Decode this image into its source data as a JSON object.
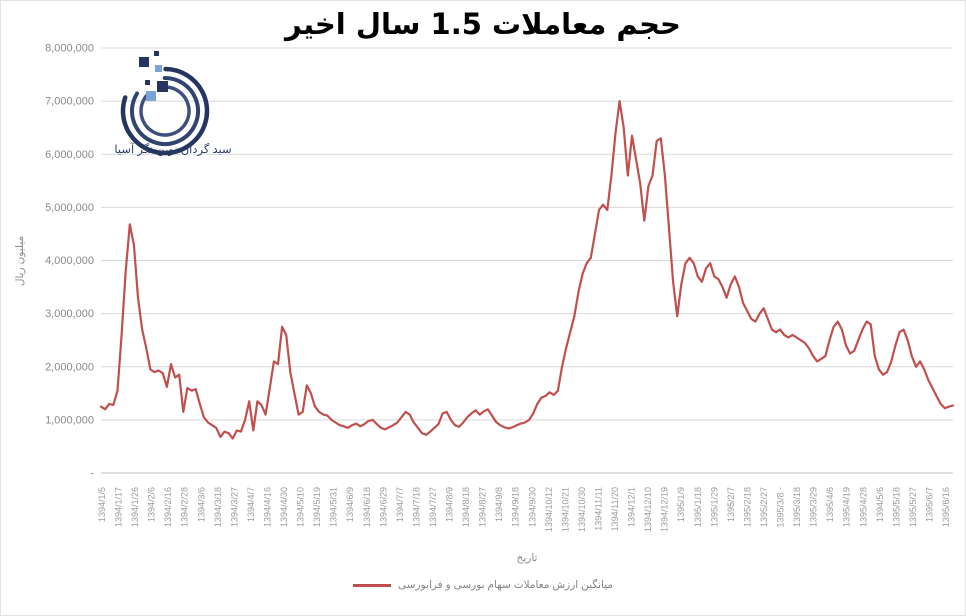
{
  "window": {
    "background": "#ffffff"
  },
  "logo": {
    "company_name": "سبد گردان نوین نگر آسیا",
    "navy": "#26355f",
    "navy_mid": "#31436f",
    "navy_light": "#3d5080",
    "accent_blue": "#7ba4d6"
  },
  "chart_data": {
    "type": "line",
    "title": "حجم معاملات 1.5 سال اخیر",
    "xlabel": "تاریخ",
    "ylabel": "میلیون ریال",
    "ylim": [
      0,
      8000000
    ],
    "grid": true,
    "legend_position": "bottom",
    "y_ticks": [
      "8,000,000",
      "7,000,000",
      "6,000,000",
      "5,000,000",
      "4,000,000",
      "3,000,000",
      "2,000,000",
      "1,000,000",
      "-"
    ],
    "categories": [
      "1394/1/5",
      "1394/1/17",
      "1394/1/26",
      "1394/2/6",
      "1394/2/16",
      "1394/2/28",
      "1394/3/6",
      "1394/3/18",
      "1394/3/27",
      "1394/4/7",
      "1394/4/16",
      "1394/4/30",
      "1394/5/10",
      "1394/5/19",
      "1394/5/31",
      "1394/6/9",
      "1394/6/18",
      "1394/6/29",
      "1394/7/7",
      "1394/7/18",
      "1394/7/27",
      "1394/8/9",
      "1394/8/18",
      "1394/8/27",
      "1394/9/8",
      "1394/9/18",
      "1394/9/30",
      "1394/10/12",
      "1394/10/21",
      "1394/10/30",
      "1394/11/11",
      "1394/11/20",
      "1394/12/1",
      "1394/12/10",
      "1394/12/19",
      "1395/1/9",
      "1395/1/18",
      "1395/1/29",
      "1395/2/7",
      "1395/2/18",
      "1395/2/27",
      "1395/3/8 -",
      "1395/3/18",
      "1395/3/29",
      "1395/4/6",
      "1395/4/19",
      "1395/4/28",
      "1394/5/6",
      "1395/5/18",
      "1395/5/27",
      "1395/6/7",
      "1395/6/16"
    ],
    "points_per_category": 4,
    "series": [
      {
        "name": "میانگین ارزش معاملات سهام بورسی و فرابورسی",
        "color": "#C0504D",
        "unit": "میلیون ریال",
        "values": [
          1250000,
          1200000,
          1300000,
          1280000,
          1550000,
          2600000,
          3800000,
          4680000,
          4300000,
          3300000,
          2700000,
          2350000,
          1950000,
          1900000,
          1930000,
          1880000,
          1620000,
          2050000,
          1800000,
          1850000,
          1150000,
          1600000,
          1550000,
          1580000,
          1300000,
          1050000,
          950000,
          900000,
          850000,
          680000,
          780000,
          750000,
          650000,
          800000,
          780000,
          1000000,
          1350000,
          800000,
          1350000,
          1280000,
          1100000,
          1600000,
          2100000,
          2050000,
          2750000,
          2600000,
          1900000,
          1500000,
          1100000,
          1150000,
          1650000,
          1500000,
          1250000,
          1150000,
          1100000,
          1080000,
          1000000,
          950000,
          900000,
          880000,
          850000,
          900000,
          930000,
          880000,
          920000,
          980000,
          1000000,
          920000,
          850000,
          820000,
          860000,
          900000,
          950000,
          1050000,
          1150000,
          1100000,
          950000,
          850000,
          750000,
          720000,
          780000,
          850000,
          920000,
          1120000,
          1150000,
          1000000,
          900000,
          870000,
          950000,
          1050000,
          1120000,
          1180000,
          1100000,
          1160000,
          1200000,
          1080000,
          960000,
          900000,
          860000,
          840000,
          860000,
          900000,
          930000,
          950000,
          1000000,
          1120000,
          1300000,
          1420000,
          1450000,
          1520000,
          1470000,
          1550000,
          2000000,
          2350000,
          2650000,
          2950000,
          3400000,
          3750000,
          3950000,
          4050000,
          4500000,
          4950000,
          5050000,
          4950000,
          5600000,
          6400000,
          7000000,
          6500000,
          5600000,
          6350000,
          5900000,
          5450000,
          4750000,
          5400000,
          5600000,
          6250000,
          6300000,
          5600000,
          4600000,
          3600000,
          2950000,
          3550000,
          3950000,
          4050000,
          3950000,
          3700000,
          3600000,
          3850000,
          3950000,
          3700000,
          3650000,
          3500000,
          3300000,
          3550000,
          3700000,
          3500000,
          3200000,
          3050000,
          2900000,
          2850000,
          3000000,
          3100000,
          2900000,
          2700000,
          2650000,
          2700000,
          2600000,
          2550000,
          2600000,
          2550000,
          2500000,
          2450000,
          2350000,
          2200000,
          2100000,
          2150000,
          2200000,
          2500000,
          2750000,
          2850000,
          2700000,
          2400000,
          2250000,
          2300000,
          2500000,
          2700000,
          2850000,
          2800000,
          2200000,
          1950000,
          1850000,
          1900000,
          2100000,
          2400000,
          2650000,
          2700000,
          2500000,
          2200000,
          2000000,
          2100000,
          1950000,
          1750000,
          1600000,
          1450000,
          1300000,
          1220000,
          1250000,
          1270000
        ]
      }
    ],
    "colors": {
      "gridline": "#d9d9d9",
      "baseline": "#bfbfbf",
      "y_tick_text": "#8a8a8a",
      "x_tick_text": "#9b9b9b"
    }
  }
}
